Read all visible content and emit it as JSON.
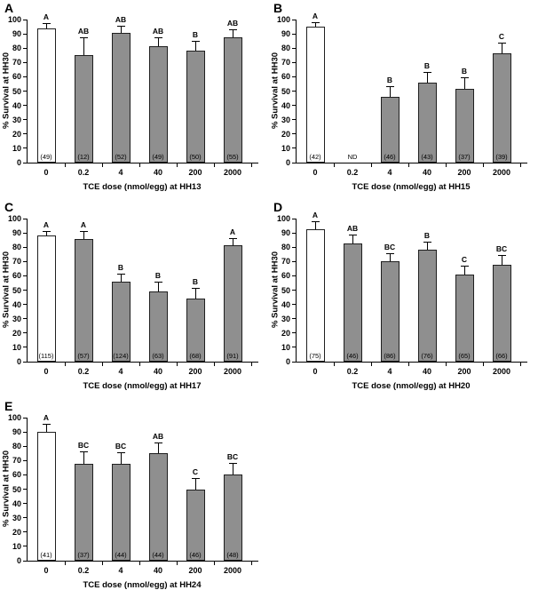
{
  "figure": {
    "background": "#ffffff",
    "axis_color": "#000000",
    "control_bar_fill": "#ffffff",
    "treated_bar_fill": "#8f8f8f",
    "bar_border": "#1f1f1f"
  },
  "chart_data": [
    {
      "panel": "A",
      "type": "bar",
      "ylabel": "% Survival at HH30",
      "xlabel": "TCE dose (nmol/egg) at HH13",
      "ylim": [
        0,
        100
      ],
      "ytick_step": 10,
      "categories": [
        "0",
        "0.2",
        "4",
        "40",
        "200",
        "2000"
      ],
      "values": [
        94,
        75,
        90.5,
        81.5,
        78.5,
        87.5
      ],
      "errors": [
        3,
        12,
        4.5,
        5.5,
        6,
        5
      ],
      "sig_letters": [
        "A",
        "AB",
        "AB",
        "AB",
        "B",
        "AB"
      ],
      "n_labels": [
        "(49)",
        "(12)",
        "(52)",
        "(49)",
        "(50)",
        "(55)"
      ],
      "bar_fills": [
        "#ffffff",
        "#8f8f8f",
        "#8f8f8f",
        "#8f8f8f",
        "#8f8f8f",
        "#8f8f8f"
      ]
    },
    {
      "panel": "B",
      "type": "bar",
      "ylabel": "% Survival at HH30",
      "xlabel": "TCE dose (nmol/egg) at HH15",
      "ylim": [
        0,
        100
      ],
      "ytick_step": 10,
      "categories": [
        "0",
        "0.2",
        "4",
        "40",
        "200",
        "2000"
      ],
      "values": [
        95,
        null,
        46,
        56,
        51.5,
        76.5
      ],
      "errors": [
        2.5,
        null,
        7,
        7,
        7.5,
        6.5
      ],
      "sig_letters": [
        "A",
        null,
        "B",
        "B",
        "B",
        "C"
      ],
      "n_labels": [
        "(42)",
        "ND",
        "(46)",
        "(43)",
        "(37)",
        "(39)"
      ],
      "bar_fills": [
        "#ffffff",
        null,
        "#8f8f8f",
        "#8f8f8f",
        "#8f8f8f",
        "#8f8f8f"
      ]
    },
    {
      "panel": "C",
      "type": "bar",
      "ylabel": "% Survival at HH30",
      "xlabel": "TCE dose (nmol/egg) at HH17",
      "ylim": [
        0,
        100
      ],
      "ytick_step": 10,
      "categories": [
        "0",
        "0.2",
        "4",
        "40",
        "200",
        "2000"
      ],
      "values": [
        88,
        86,
        56,
        49,
        44,
        81.5
      ],
      "errors": [
        3,
        5,
        5,
        6,
        7,
        4.5
      ],
      "sig_letters": [
        "A",
        "A",
        "B",
        "B",
        "B",
        "A"
      ],
      "n_labels": [
        "(115)",
        "(57)",
        "(124)",
        "(63)",
        "(68)",
        "(91)"
      ],
      "bar_fills": [
        "#ffffff",
        "#8f8f8f",
        "#8f8f8f",
        "#8f8f8f",
        "#8f8f8f",
        "#8f8f8f"
      ]
    },
    {
      "panel": "D",
      "type": "bar",
      "ylabel": "% Survival at HH30",
      "xlabel": "TCE dose (nmol/egg) at HH20",
      "ylim": [
        0,
        100
      ],
      "ytick_step": 10,
      "categories": [
        "0",
        "0.2",
        "4",
        "40",
        "200",
        "2000"
      ],
      "values": [
        92.5,
        82.5,
        70,
        78,
        61,
        68
      ],
      "errors": [
        5,
        6,
        5,
        5,
        5.5,
        6
      ],
      "sig_letters": [
        "A",
        "AB",
        "BC",
        "B",
        "C",
        "BC"
      ],
      "n_labels": [
        "(75)",
        "(46)",
        "(86)",
        "(76)",
        "(65)",
        "(66)"
      ],
      "bar_fills": [
        "#ffffff",
        "#8f8f8f",
        "#8f8f8f",
        "#8f8f8f",
        "#8f8f8f",
        "#8f8f8f"
      ]
    },
    {
      "panel": "E",
      "type": "bar",
      "ylabel": "% Survival at HH30",
      "xlabel": "TCE dose (nmol/egg) at HH24",
      "ylim": [
        0,
        100
      ],
      "ytick_step": 10,
      "categories": [
        "0",
        "0.2",
        "4",
        "40",
        "200",
        "2000"
      ],
      "values": [
        90,
        67.5,
        68,
        75,
        50,
        60
      ],
      "errors": [
        5,
        8,
        7,
        7,
        7,
        8
      ],
      "sig_letters": [
        "A",
        "BC",
        "BC",
        "AB",
        "C",
        "BC"
      ],
      "n_labels": [
        "(41)",
        "(37)",
        "(44)",
        "(44)",
        "(46)",
        "(48)"
      ],
      "bar_fills": [
        "#ffffff",
        "#8f8f8f",
        "#8f8f8f",
        "#8f8f8f",
        "#8f8f8f",
        "#8f8f8f"
      ]
    }
  ]
}
